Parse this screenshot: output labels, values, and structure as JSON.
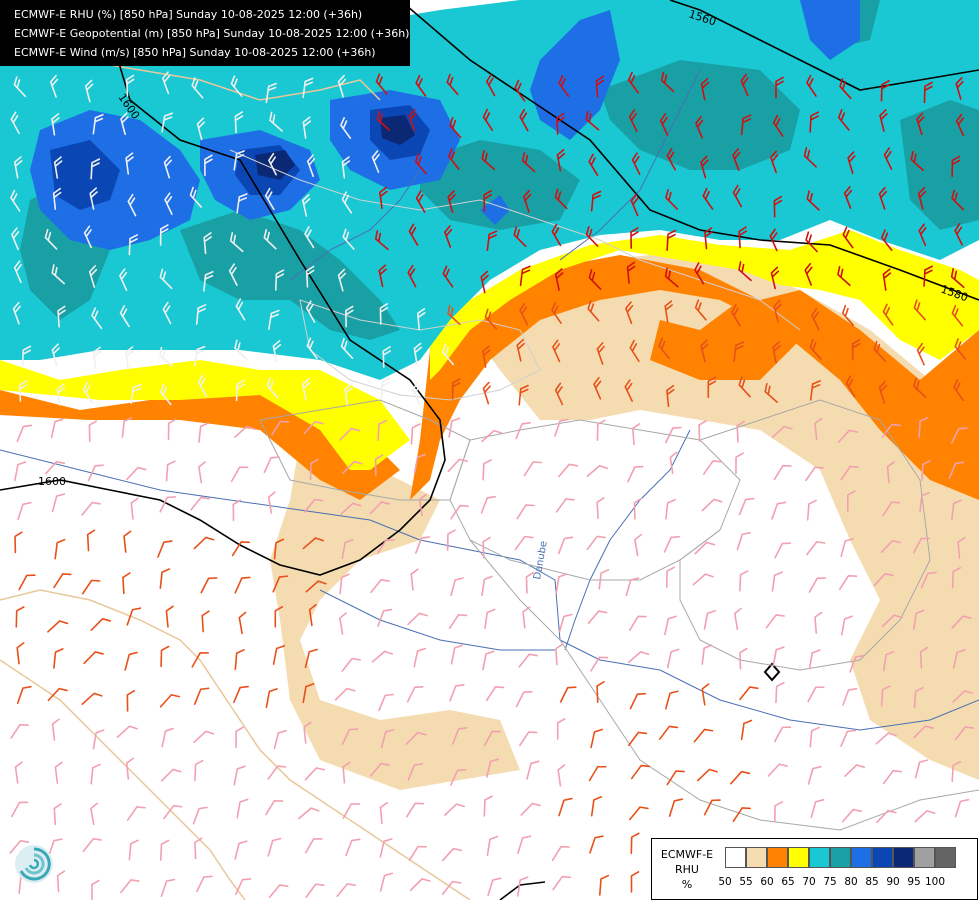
{
  "header": {
    "line1": "ECMWF-E RHU (%) [850 hPa] Sunday 10-08-2025 12:00 (+36h)",
    "line2": "ECMWF-E Geopotential (m) [850 hPa] Sunday 10-08-2025 12:00 (+36h)",
    "line3": "ECMWF-E Wind (m/s) [850 hPa] Sunday 10-08-2025 12:00 (+36h)"
  },
  "contours": {
    "label_1560": "1560",
    "label_1580": "1580",
    "label_1600_top": "1600",
    "label_1600_left": "1600"
  },
  "place": {
    "river": "Danube"
  },
  "legend": {
    "title_lines": [
      "ECMWF-E",
      "RHU",
      "%"
    ],
    "values": [
      "50",
      "55",
      "60",
      "65",
      "70",
      "75",
      "80",
      "85",
      "90",
      "95",
      "100"
    ],
    "colors": [
      "#ffffff",
      "#f5dcb0",
      "#ff8200",
      "#ffff00",
      "#19c8d2",
      "#19a0a5",
      "#1e6ee6",
      "#0a46b4",
      "#0a2873",
      "#a0a0a0",
      "#646464"
    ]
  },
  "colors": {
    "rh_50_55": "#f5dcb0",
    "rh_55_60": "#ff8200",
    "rh_60_65": "#ffff00",
    "rh_65_70": "#19c8d2",
    "rh_70_75": "#19a0a5",
    "rh_75_80": "#1e6ee6",
    "rh_80_85": "#0a46b4",
    "rh_85_90": "#0a2873",
    "coast": "#e8c89a",
    "border": "#d9d9d9",
    "river": "#4a6fb5",
    "barb_low": "#f2a0b0",
    "barb_mid": "#e8501a",
    "barb_high": "#d01010",
    "contour": "#000000"
  }
}
